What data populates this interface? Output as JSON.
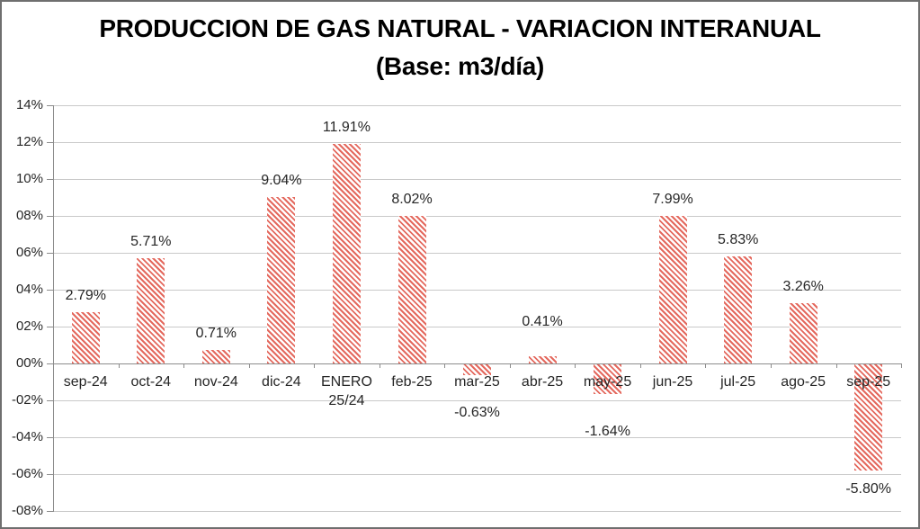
{
  "title": {
    "line1": "PRODUCCION DE GAS NATURAL - VARIACION INTERANUAL",
    "line2": "(Base: m3/día)"
  },
  "chart_data": {
    "type": "bar",
    "title": "PRODUCCION DE GAS NATURAL - VARIACION INTERANUAL",
    "subtitle": "(Base: m3/día)",
    "categories": [
      "sep-24",
      "oct-24",
      "nov-24",
      "dic-24",
      "ENERO 25/24",
      "feb-25",
      "mar-25",
      "abr-25",
      "may-25",
      "jun-25",
      "jul-25",
      "ago-25",
      "sep-25"
    ],
    "values": [
      2.79,
      5.71,
      0.71,
      9.04,
      11.91,
      8.02,
      -0.63,
      0.41,
      -1.64,
      7.99,
      5.83,
      3.26,
      -5.8
    ],
    "value_labels": [
      "2.79%",
      "5.71%",
      "0.71%",
      "9.04%",
      "11.91%",
      "8.02%",
      "-0.63%",
      "0.41%",
      "-1.64%",
      "7.99%",
      "5.83%",
      "3.26%",
      "-5.80%"
    ],
    "xlabel": "",
    "ylabel": "",
    "ylim": [
      -8,
      14
    ],
    "ytick_step": 2,
    "ytick_labels": [
      "14%",
      "12%",
      "10%",
      "08%",
      "06%",
      "04%",
      "02%",
      "00%",
      "-02%",
      "-04%",
      "-06%",
      "-08%"
    ],
    "grid": true,
    "legend": "none",
    "bar_style": {
      "pattern": "diagonal-hatch",
      "stripe_color": "#e4695e",
      "pattern_background": "#ffffff"
    }
  },
  "colors": {
    "gridline": "#c9c9c9",
    "axis": "#8c8c8c",
    "label_text": "#262626",
    "title_text": "#000000",
    "chart_border": "#6f6f6f",
    "background": "#ffffff"
  }
}
